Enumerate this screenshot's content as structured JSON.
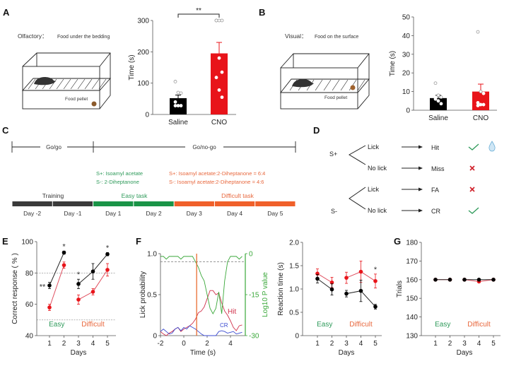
{
  "panel_labels": {
    "a": "A",
    "b": "B",
    "c": "C",
    "d": "D",
    "e": "E",
    "f": "F",
    "g": "G"
  },
  "panel_a": {
    "condition": "Olfactory：",
    "description": "Food under the bedding",
    "pellet_label": "Food pellet",
    "significance": "**"
  },
  "panel_b": {
    "condition": "Visual：",
    "description": "Food on the surface",
    "pellet_label": "Food pellet"
  },
  "panel_c": {
    "phase_1": "Go/go",
    "phase_2": "Go/no-go",
    "easy_splus": "S+: Isoamyl acetate",
    "easy_sminus": "S-: 2-Diheptanone",
    "diff_splus": "S+: Isoamyl acetate:2-Diheptanone = 6:4",
    "diff_sminus": "S-: Isoamyl acetate:2-Diheptanone = 4:6",
    "stages": [
      {
        "label": "Training",
        "color": "#3a3a3a"
      },
      {
        "label": "Easy task",
        "color": "#1a9447"
      },
      {
        "label": "Difficult task",
        "color": "#f0602a"
      }
    ],
    "days": [
      "Day -2",
      "Day -1",
      "Day 1",
      "Day 2",
      "Day 3",
      "Day 4",
      "Day 5"
    ],
    "day_stage": [
      0,
      0,
      1,
      1,
      2,
      2,
      2
    ]
  },
  "panel_d": {
    "stim_plus": "S+",
    "stim_minus": "S-",
    "rows": [
      {
        "action": "Lick",
        "outcome": "Hit",
        "mark": "check-icon",
        "reward": "water-drop-icon"
      },
      {
        "action": "No lick",
        "outcome": "Miss",
        "mark": "cross-icon"
      },
      {
        "action": "Lick",
        "outcome": "FA",
        "mark": "cross-icon"
      },
      {
        "action": "No lick",
        "outcome": "CR",
        "mark": "check-icon"
      }
    ]
  },
  "colors": {
    "saline": "#000000",
    "cno": "#e8141a",
    "easy": "#2e9a5a",
    "difficult": "#e8683e",
    "pvalue": "#3aa83a",
    "hit": "#d0304a",
    "cr": "#3a4ad0",
    "onset": "#e86020"
  },
  "chart_data": [
    {
      "id": "A",
      "type": "bar",
      "ylabel": "Time (s)",
      "ylim": [
        0,
        300
      ],
      "yticks": [
        0,
        100,
        200,
        300
      ],
      "categories": [
        "Saline",
        "CNO"
      ],
      "values": [
        52,
        195
      ],
      "errors": [
        10,
        35
      ],
      "points": [
        [
          105,
          70,
          68,
          40,
          28,
          28,
          28
        ],
        [
          300,
          300,
          300,
          300,
          180,
          135,
          118,
          78,
          55
        ]
      ],
      "annotation": "**"
    },
    {
      "id": "B",
      "type": "bar",
      "ylabel": "Time (s)",
      "ylim": [
        0,
        50
      ],
      "yticks": [
        0,
        10,
        20,
        30,
        40,
        50
      ],
      "categories": [
        "Saline",
        "CNO"
      ],
      "values": [
        6.5,
        10
      ],
      "errors": [
        1.5,
        4
      ],
      "points": [
        [
          14.5,
          8,
          7,
          6,
          5,
          3.5
        ],
        [
          42,
          10,
          9,
          4,
          3,
          3,
          2.5
        ]
      ]
    },
    {
      "id": "E",
      "type": "line",
      "xlabel": "Days",
      "ylabel": "Correct response ( % )",
      "ylim": [
        40,
        100
      ],
      "yticks": [
        40,
        60,
        80,
        100
      ],
      "x": [
        1,
        2,
        3,
        4,
        5
      ],
      "reference_lines": [
        80,
        50
      ],
      "series": [
        {
          "values": [
            72,
            93,
            73,
            81,
            92
          ],
          "errors": [
            2,
            1,
            3,
            5,
            1
          ],
          "color": "#000000"
        },
        {
          "values": [
            58,
            85,
            63,
            68,
            82
          ],
          "errors": [
            2,
            2,
            3,
            2,
            4
          ],
          "color": "#e8141a"
        }
      ],
      "stars": [
        {
          "x": 1,
          "label": "**"
        },
        {
          "x": 2,
          "label": "*"
        },
        {
          "x": 3,
          "label": "*"
        },
        {
          "x": 5,
          "label": "*"
        }
      ],
      "group_labels": [
        "Easy",
        "Difficult"
      ]
    },
    {
      "id": "F",
      "type": "line",
      "xlabel": "Time (s)",
      "ylabel": "Lick probability",
      "ylabel_right": "Log10 P value",
      "xlim": [
        -2,
        5
      ],
      "xticks": [
        -2,
        0,
        2,
        4
      ],
      "ylim": [
        0,
        1
      ],
      "yticks": [
        0,
        0.5,
        1.0
      ],
      "yticklabels": [
        "0",
        "0.5",
        "1.0"
      ],
      "ylim_right": [
        -30,
        0
      ],
      "yticks_right": [
        0,
        -15,
        -30
      ],
      "onset_time": 1.1,
      "threshold": 0.9,
      "t_start": -2,
      "t_step": 0.25,
      "series": [
        {
          "name": "Hit",
          "values": [
            0.05,
            0.02,
            0,
            0.03,
            0.05,
            0.08,
            0.1,
            0.05,
            0.08,
            0.1,
            0.12,
            0.15,
            0.2,
            0.28,
            0.3,
            0.35,
            0.45,
            0.55,
            0.55,
            0.5,
            0.52,
            0.4,
            0.3,
            0.25,
            0.18,
            0.1,
            0.06,
            0.12,
            0.13
          ]
        },
        {
          "name": "CR",
          "values": [
            0.05,
            0.08,
            0.05,
            0.02,
            0.03,
            0.08,
            0.1,
            0.06,
            0.1,
            0.08,
            0.12,
            0.1,
            0.08,
            0.05,
            0.02,
            0,
            0,
            0,
            0,
            0,
            0.05,
            0.06,
            0.05,
            0.03,
            0.04,
            0.05,
            0.02,
            0.03,
            0.04
          ]
        },
        {
          "name": "P value",
          "axis": "right",
          "values": [
            -1,
            -1,
            -2,
            -1,
            -1,
            -1,
            -1,
            -2,
            -1,
            -1,
            -1,
            -1,
            -3,
            -5,
            -8,
            -10,
            -15,
            -20,
            -22,
            -20,
            -14,
            -22,
            -10,
            -3,
            -1,
            -1,
            -1,
            -2,
            -1
          ]
        }
      ]
    },
    {
      "id": "RT",
      "type": "line",
      "xlabel": "Days",
      "ylabel": "Reaction time (s)",
      "ylim": [
        0,
        2
      ],
      "yticks": [
        0,
        0.5,
        1.0,
        1.5,
        2.0
      ],
      "yticklabels": [
        "0",
        "0.5",
        "1.0",
        "1.5",
        "2.0"
      ],
      "x": [
        1,
        2,
        3,
        4,
        5
      ],
      "series": [
        {
          "values": [
            1.33,
            1.14,
            1.24,
            1.37,
            1.17
          ],
          "errors": [
            0.1,
            0.11,
            0.12,
            0.23,
            0.15
          ],
          "color": "#e8141a"
        },
        {
          "values": [
            1.22,
            0.99,
            0.9,
            0.96,
            0.62
          ],
          "errors": [
            0.09,
            0.12,
            0.07,
            0.23,
            0.05
          ],
          "color": "#000000"
        }
      ],
      "stars": [
        {
          "x": 5,
          "label": "*"
        }
      ],
      "group_labels": [
        "Easy",
        "Difficult"
      ]
    },
    {
      "id": "G",
      "type": "line",
      "xlabel": "Days",
      "ylabel": "Trials",
      "ylim": [
        130,
        180
      ],
      "yticks": [
        130,
        140,
        150,
        160,
        170,
        180
      ],
      "x": [
        1,
        2,
        3,
        4,
        5
      ],
      "series": [
        {
          "values": [
            160,
            160,
            160,
            159,
            160
          ],
          "color": "#e8141a"
        },
        {
          "values": [
            160,
            160,
            160,
            160,
            160
          ],
          "color": "#000000"
        }
      ],
      "group_labels": [
        "Easy",
        "Difficult"
      ]
    }
  ]
}
